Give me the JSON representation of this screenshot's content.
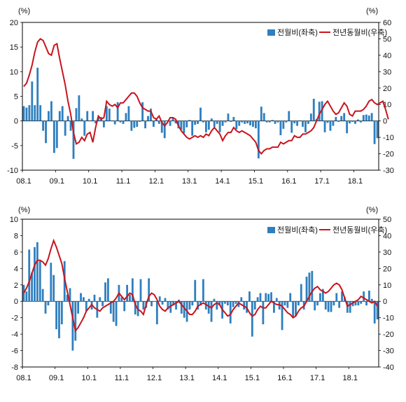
{
  "chart_data": [
    {
      "type": "bar",
      "left_unit": "(%)",
      "right_unit": "(%)",
      "left_ylim": [
        -10,
        20
      ],
      "right_ylim": [
        -30,
        60
      ],
      "left_ticks": [
        20,
        15,
        10,
        5,
        0,
        -5,
        -10
      ],
      "right_ticks": [
        60,
        50,
        40,
        30,
        20,
        10,
        0,
        -10,
        -20,
        -30
      ],
      "x_tick_labels": [
        "08.1",
        "09.1",
        "10.1",
        "11.1",
        "12.1",
        "13.1",
        "14.1",
        "15.1",
        "16.1",
        "17.1",
        "18.1"
      ],
      "legend_position": "top-right",
      "series": [
        {
          "name": "전월비(좌축)",
          "kind": "bar",
          "axis": "left",
          "color": "#2e7fbf",
          "values": [
            3,
            2.7,
            3.2,
            8,
            3.2,
            10.8,
            3.2,
            -2,
            -4.5,
            2,
            4,
            -6.5,
            -5.5,
            2,
            3,
            -3,
            1,
            -2,
            -7.7,
            2.6,
            5.2,
            0.5,
            -3,
            2,
            0,
            2,
            -0.5,
            0.8,
            0.8,
            -1.3,
            3,
            2.5,
            0,
            -0.7,
            3.8,
            -0.3,
            -0.6,
            1.6,
            3,
            -2,
            -1.4,
            -1.2,
            -0.2,
            3.8,
            -1.5,
            1,
            2.5,
            -1.2,
            0.6,
            -0.6,
            -2.4,
            -3.5,
            0,
            -1,
            0.5,
            -0.5,
            -1.5,
            -1.8,
            -2.5,
            -1.3,
            0.2,
            -3,
            -0.8,
            -0.6,
            2.7,
            -0.3,
            -2.3,
            -1.8,
            0.5,
            -1.2,
            -0.6,
            -2.3,
            -1,
            -0.3,
            1.5,
            -0.2,
            0.8,
            -1.7,
            -1,
            -0.3,
            -0.6,
            -0.5,
            -0.9,
            -1.2,
            -1.5,
            -7.6,
            2.9,
            1.6,
            -0.3,
            -0.3,
            0.2,
            -0.6,
            -0.3,
            -2.9,
            -1.6,
            -0.3,
            2,
            -2.4,
            -0.5,
            -1,
            0,
            -1.2,
            -2.3,
            -0.6,
            1.5,
            4.5,
            0.4,
            3.9,
            4,
            -2.3,
            -0.4,
            -2,
            -1,
            0.8,
            -0.2,
            1,
            1.6,
            -2.5,
            -0.5,
            -0.2,
            -0.6,
            0.3,
            -0.3,
            1.2,
            1.3,
            1.1,
            1.6,
            -4.7,
            -3.5
          ],
          "legend_label": "전월비(좌축)"
        },
        {
          "name": "전년동월비(우축)",
          "kind": "line",
          "axis": "right",
          "color": "#c8141e",
          "values": [
            21,
            23,
            28,
            34,
            42,
            48,
            50,
            49,
            45,
            41,
            40,
            46,
            47,
            38,
            30,
            22,
            12,
            4,
            -7,
            -14,
            -13,
            -10,
            -12,
            -8,
            -7,
            -13,
            -4,
            3,
            1,
            2,
            12,
            10,
            9,
            10,
            8,
            11,
            11,
            13,
            15,
            17,
            17,
            15,
            11,
            8,
            7,
            6,
            6,
            2,
            1,
            3,
            -1,
            -3,
            -1,
            2,
            2,
            1,
            -3,
            -6,
            -8,
            -10,
            -11,
            -10,
            -9,
            -10,
            -9,
            -10,
            -8,
            -9,
            -6,
            -4,
            -6,
            -8,
            -12,
            -9,
            -7,
            -7,
            -4,
            -6,
            -7,
            -6,
            -7,
            -8,
            -9,
            -11,
            -13,
            -18,
            -20,
            -18,
            -17,
            -17,
            -16,
            -16,
            -16,
            -13,
            -14,
            -13,
            -12,
            -12,
            -9,
            -10,
            -10,
            -8,
            -8,
            -7,
            -6,
            -4,
            0,
            4,
            7,
            10,
            12,
            9,
            6,
            4,
            5,
            8,
            11,
            9,
            4,
            3,
            6,
            6,
            6,
            7,
            9,
            12,
            13,
            11,
            10,
            11,
            12,
            7,
            1
          ]
        }
      ]
    },
    {
      "type": "bar",
      "left_unit": "(%)",
      "right_unit": "(%)",
      "left_ylim": [
        -8,
        10
      ],
      "right_ylim": [
        -40,
        50
      ],
      "left_ticks": [
        10,
        8,
        6,
        4,
        2,
        0,
        -2,
        -4,
        -6,
        -8
      ],
      "right_ticks": [
        50,
        40,
        30,
        20,
        10,
        0,
        -10,
        -20,
        -30,
        -40
      ],
      "x_tick_labels": [
        "08.1",
        "09.1",
        "10.1",
        "11.1",
        "12.1",
        "13.1",
        "14.1",
        "15.1",
        "16.1",
        "17.1",
        "18.1"
      ],
      "legend_position": "top-right",
      "series": [
        {
          "name": "전월비(좌축)",
          "kind": "bar",
          "axis": "left",
          "color": "#2e7fbf",
          "values": [
            2,
            1.2,
            6.3,
            3.5,
            6.6,
            7.2,
            4.9,
            1.5,
            -1.5,
            -0.5,
            4.7,
            3.2,
            -3.4,
            -4.5,
            -2.8,
            4.9,
            0.8,
            1.6,
            -6,
            -4.8,
            -1.5,
            1,
            0.5,
            -1.2,
            0.3,
            -1,
            0.8,
            -2,
            0.5,
            -0.6,
            2.3,
            2.8,
            -1.5,
            -2.5,
            -3,
            2,
            0.5,
            -1.2,
            2,
            0.8,
            2.8,
            -1.6,
            -1.8,
            2.7,
            -1,
            -0.8,
            2.8,
            -0.6,
            0,
            -2.8,
            0.6,
            -0.4,
            0.4,
            -1,
            -1.4,
            -0.5,
            -1,
            0.2,
            -1.5,
            -2,
            -2.5,
            -1,
            -0.5,
            2.6,
            -1,
            -0.5,
            2.7,
            -1,
            -1.5,
            -2.5,
            0.3,
            -1,
            -0.5,
            -2.1,
            -0.3,
            -0.5,
            -2.7,
            -0.7,
            -0.3,
            -0.7,
            0.5,
            -1,
            -1.4,
            1.2,
            -4.3,
            -1,
            0.5,
            1,
            -2.8,
            1,
            0.9,
            1.1,
            -1.4,
            0.4,
            -1,
            -3.5,
            -0.5,
            -0.8,
            1,
            -2,
            -1.8,
            -0.5,
            2.1,
            -1,
            3,
            3.5,
            3.7,
            -1.1,
            -0.5,
            1,
            1.5,
            -1,
            -1.3,
            -1.3,
            -0.5,
            1,
            -0.8,
            1.2,
            0.5,
            -1.4,
            -1.4,
            -0.6,
            -0.5,
            -0.5,
            -0.3,
            1.2,
            -0.5,
            1.3,
            0.3,
            -2.7,
            -2.2
          ]
        },
        {
          "name": "전년동월비(우축)",
          "kind": "line",
          "axis": "right",
          "color": "#c8141e",
          "values": [
            5,
            8,
            12,
            17,
            22,
            25,
            25,
            24,
            22,
            26,
            32,
            37,
            33,
            28,
            23,
            14,
            6,
            -2,
            -10,
            -18,
            -16,
            -13,
            -10,
            -6,
            -4,
            -2,
            -4,
            -5,
            -6,
            -4,
            -3,
            -2,
            -1,
            0,
            2,
            5,
            3,
            1,
            3,
            5,
            4,
            -2,
            -5,
            -6,
            -8,
            -2,
            3,
            5,
            4,
            1,
            -3,
            -5,
            -6,
            -4,
            -3,
            -2,
            -1,
            0,
            -2,
            -4,
            -6,
            -8,
            -8,
            -6,
            -3,
            -2,
            -1,
            -2,
            -3,
            -4,
            -2,
            -1,
            -2,
            -5,
            -7,
            -9,
            -8,
            -5,
            -3,
            -1,
            -2,
            -3,
            -4,
            -7,
            -9,
            -8,
            -5,
            -3,
            -4,
            -4,
            -2,
            0,
            -1,
            -2,
            -2,
            -3,
            -5,
            -7,
            -8,
            -10,
            -9,
            -6,
            -4,
            -3,
            0,
            3,
            6,
            8,
            9,
            7,
            6,
            5,
            6,
            8,
            10,
            11,
            10,
            7,
            2,
            -3,
            -2,
            -1,
            0,
            1,
            3,
            2,
            1,
            0,
            -1,
            0,
            -3
          ]
        }
      ]
    }
  ]
}
